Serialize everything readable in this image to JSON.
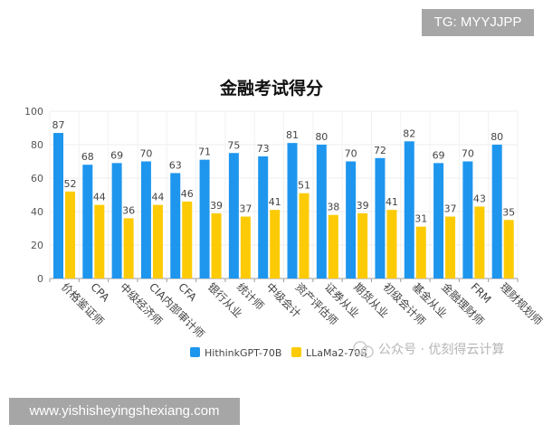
{
  "watermarks": {
    "top": "TG: MYYJJPP",
    "bottom": "www.yishisheyingshexiang.com",
    "wechat": "公众号 · 优刻得云计算"
  },
  "chart_data": {
    "type": "bar",
    "title": "金融考试得分",
    "categories": [
      "价格鉴证师",
      "CPA",
      "中级经济师",
      "CIA内部审计师",
      "CFA",
      "银行从业",
      "统计师",
      "中级会计",
      "资产评估师",
      "证券从业",
      "期货从业",
      "初级会计师",
      "基金从业",
      "金融理财师",
      "FRM",
      "理财规划师"
    ],
    "series": [
      {
        "name": "HithinkGPT-70B",
        "color": "#1e96ee",
        "values": [
          87,
          68,
          69,
          70,
          63,
          71,
          75,
          73,
          81,
          80,
          70,
          72,
          82,
          69,
          70,
          80
        ]
      },
      {
        "name": "LLaMa2-70B",
        "color": "#fccb05",
        "values": [
          52,
          44,
          36,
          44,
          46,
          39,
          37,
          41,
          51,
          38,
          39,
          41,
          31,
          37,
          43,
          35
        ]
      }
    ],
    "ylim": [
      0,
      100
    ],
    "yticks": [
      0,
      20,
      40,
      60,
      80,
      100
    ],
    "grid": true,
    "legend": "bottom"
  }
}
